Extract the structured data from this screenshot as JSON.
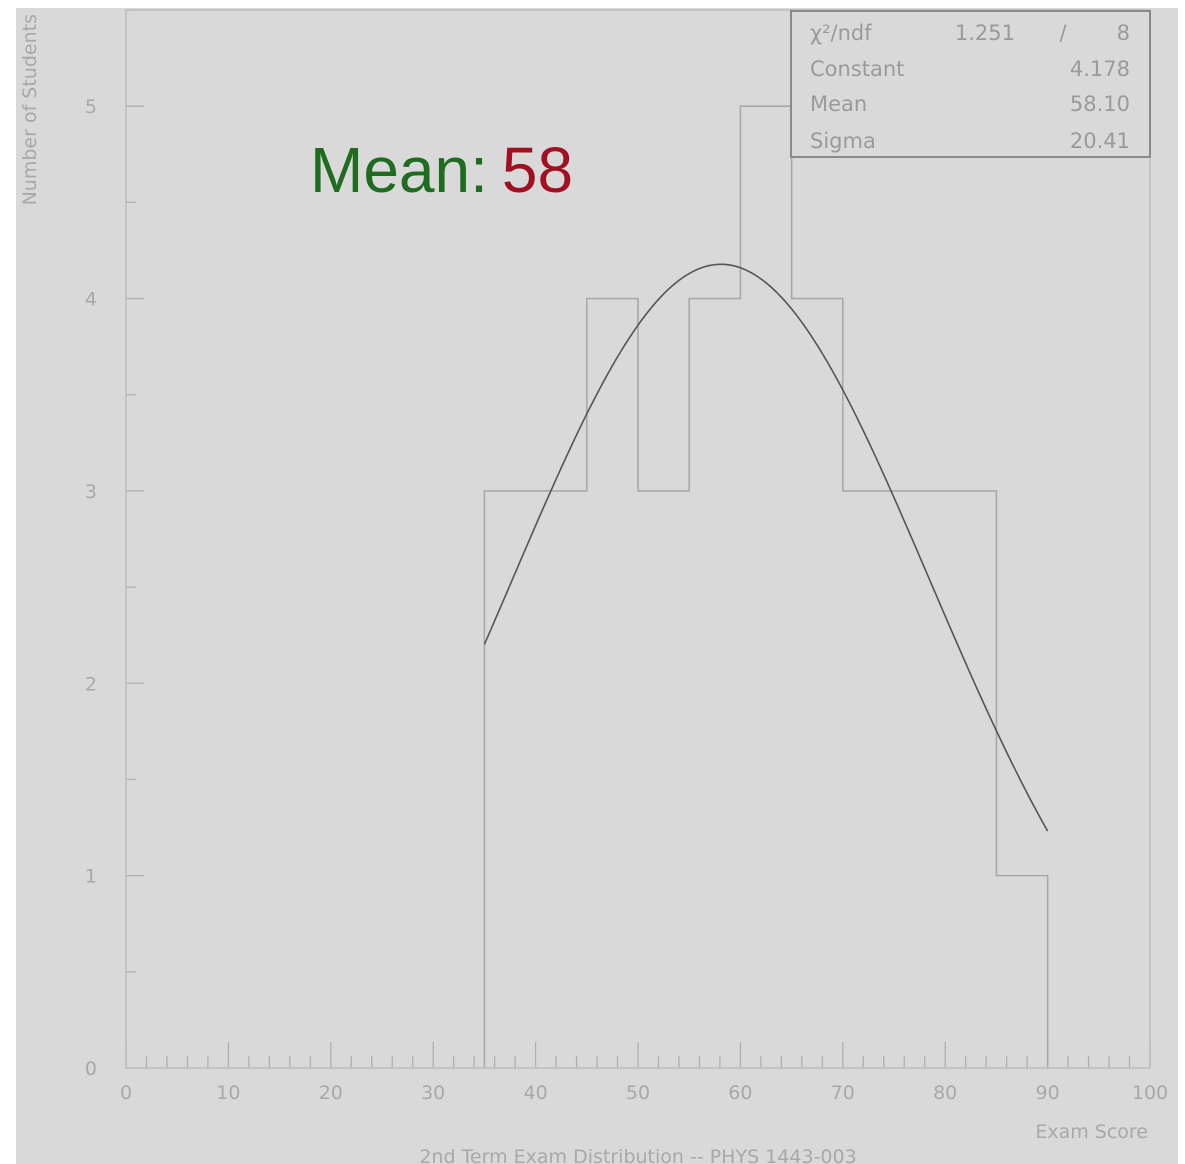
{
  "chart_data": {
    "type": "bar",
    "subtype": "histogram",
    "title": "2nd Term Exam Distribution -- PHYS 1443-003",
    "xlabel": "Exam Score",
    "ylabel": "Number of Students",
    "xlim": [
      0,
      100
    ],
    "ylim": [
      0,
      5.5
    ],
    "x_ticks": [
      0,
      10,
      20,
      30,
      40,
      50,
      60,
      70,
      80,
      90,
      100
    ],
    "x_tick_labels": [
      "0",
      "10",
      "20",
      "30",
      "40",
      "50",
      "60",
      "70",
      "80",
      "90",
      "100"
    ],
    "y_ticks": [
      0,
      1,
      2,
      3,
      4,
      5
    ],
    "y_tick_labels": [
      "0",
      "1",
      "2",
      "3",
      "4",
      "5"
    ],
    "bin_width": 5,
    "bins": [
      {
        "low": 35,
        "high": 40,
        "count": 3
      },
      {
        "low": 40,
        "high": 45,
        "count": 3
      },
      {
        "low": 45,
        "high": 50,
        "count": 4
      },
      {
        "low": 50,
        "high": 55,
        "count": 3
      },
      {
        "low": 55,
        "high": 60,
        "count": 4
      },
      {
        "low": 60,
        "high": 65,
        "count": 5
      },
      {
        "low": 65,
        "high": 70,
        "count": 4
      },
      {
        "low": 70,
        "high": 75,
        "count": 3
      },
      {
        "low": 75,
        "high": 80,
        "count": 3
      },
      {
        "low": 80,
        "high": 85,
        "count": 3
      },
      {
        "low": 85,
        "high": 90,
        "count": 1
      }
    ],
    "fit": {
      "function": "gaussian",
      "x_range": [
        35,
        90
      ],
      "constant": 4.178,
      "mean": 58.1,
      "sigma": 20.41
    },
    "grid": false,
    "colors": {
      "background": "#d9d9d9",
      "frame": "#bdbdbd",
      "histogram": "#a9a9a9",
      "fit_curve": "#555555",
      "mean_label": "#1f6b1f",
      "mean_value": "#a01020",
      "stats_border": "#8a8a8a"
    }
  },
  "stats_box": {
    "rows": [
      {
        "name": "χ²/ndf",
        "value": "1.251",
        "sep": "/",
        "extra": "8"
      },
      {
        "name": "Constant",
        "value": "4.178"
      },
      {
        "name": "Mean",
        "value": "58.10"
      },
      {
        "name": "Sigma",
        "value": "20.41"
      }
    ]
  },
  "annotation": {
    "label": "Mean:",
    "value": "58"
  }
}
